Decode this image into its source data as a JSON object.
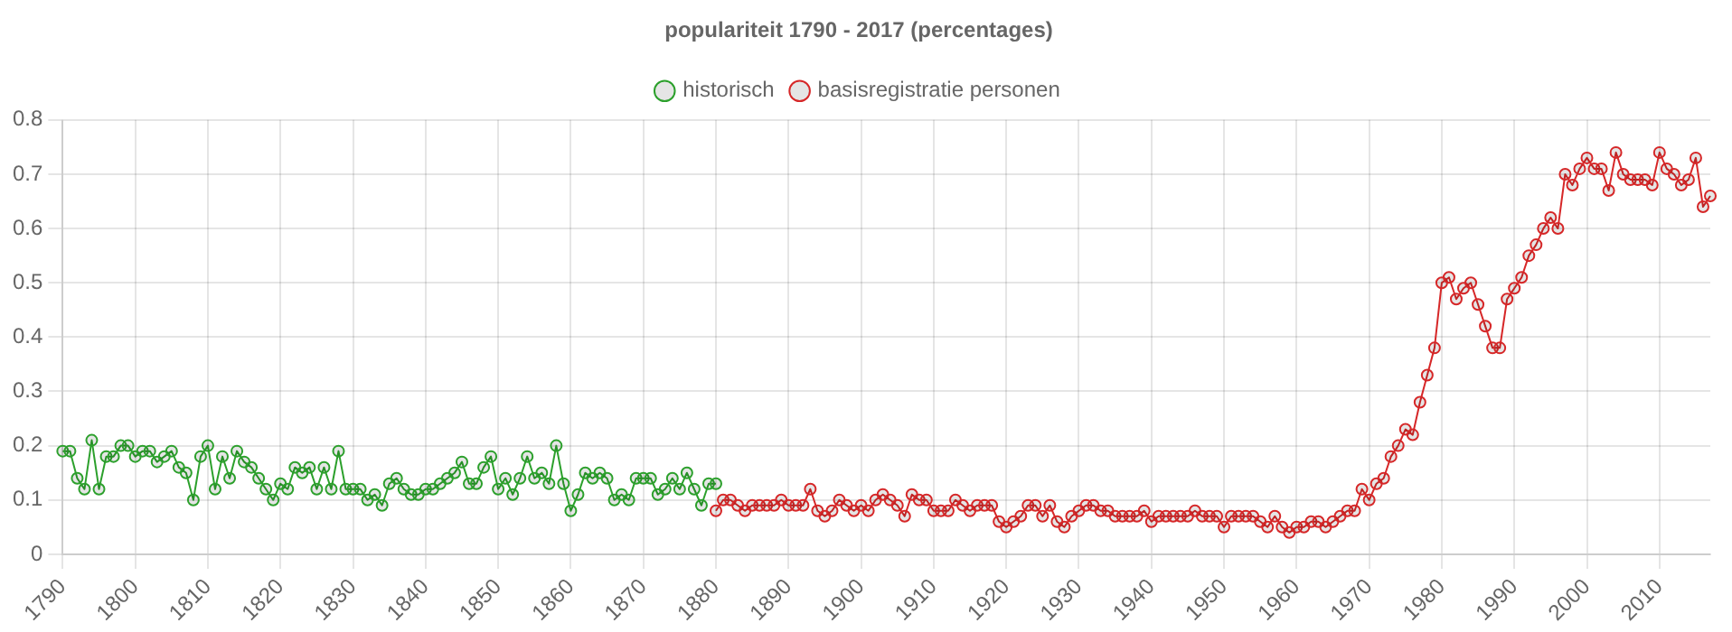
{
  "chart_data": {
    "type": "line",
    "title": "populariteit 1790 - 2017 (percentages)",
    "xlim": [
      1790,
      2017
    ],
    "xticks": [
      1790,
      1800,
      1810,
      1820,
      1830,
      1840,
      1850,
      1860,
      1870,
      1880,
      1890,
      1900,
      1910,
      1920,
      1930,
      1940,
      1950,
      1960,
      1970,
      1980,
      1990,
      2000,
      2010
    ],
    "ylim": [
      0,
      0.8
    ],
    "yticks": [
      0,
      0.1,
      0.2,
      0.3,
      0.4,
      0.5,
      0.6,
      0.7,
      0.8
    ],
    "grid": true,
    "legend": "top",
    "marker": "circle",
    "series": [
      {
        "name": "historisch",
        "color": "#2ca02c",
        "x": [
          1790,
          1791,
          1792,
          1793,
          1794,
          1795,
          1796,
          1797,
          1798,
          1799,
          1800,
          1801,
          1802,
          1803,
          1804,
          1805,
          1806,
          1807,
          1808,
          1809,
          1810,
          1811,
          1812,
          1813,
          1814,
          1815,
          1816,
          1817,
          1818,
          1819,
          1820,
          1821,
          1822,
          1823,
          1824,
          1825,
          1826,
          1827,
          1828,
          1829,
          1830,
          1831,
          1832,
          1833,
          1834,
          1835,
          1836,
          1837,
          1838,
          1839,
          1840,
          1841,
          1842,
          1843,
          1844,
          1845,
          1846,
          1847,
          1848,
          1849,
          1850,
          1851,
          1852,
          1853,
          1854,
          1855,
          1856,
          1857,
          1858,
          1859,
          1860,
          1861,
          1862,
          1863,
          1864,
          1865,
          1866,
          1867,
          1868,
          1869,
          1870,
          1871,
          1872,
          1873,
          1874,
          1875,
          1876,
          1877,
          1878,
          1879,
          1880
        ],
        "values": [
          0.19,
          0.19,
          0.14,
          0.12,
          0.21,
          0.12,
          0.18,
          0.18,
          0.2,
          0.2,
          0.18,
          0.19,
          0.19,
          0.17,
          0.18,
          0.19,
          0.16,
          0.15,
          0.1,
          0.18,
          0.2,
          0.12,
          0.18,
          0.14,
          0.19,
          0.17,
          0.16,
          0.14,
          0.12,
          0.1,
          0.13,
          0.12,
          0.16,
          0.15,
          0.16,
          0.12,
          0.16,
          0.12,
          0.19,
          0.12,
          0.12,
          0.12,
          0.1,
          0.11,
          0.09,
          0.13,
          0.14,
          0.12,
          0.11,
          0.11,
          0.12,
          0.12,
          0.13,
          0.14,
          0.15,
          0.17,
          0.13,
          0.13,
          0.16,
          0.18,
          0.12,
          0.14,
          0.11,
          0.14,
          0.18,
          0.14,
          0.15,
          0.13,
          0.2,
          0.13,
          0.08,
          0.11,
          0.15,
          0.14,
          0.15,
          0.14,
          0.1,
          0.11,
          0.1,
          0.14,
          0.14,
          0.14,
          0.11,
          0.12,
          0.14,
          0.12,
          0.15,
          0.12,
          0.09,
          0.13,
          0.13
        ]
      },
      {
        "name": "basisregistratie personen",
        "color": "#d62728",
        "x": [
          1880,
          1881,
          1882,
          1883,
          1884,
          1885,
          1886,
          1887,
          1888,
          1889,
          1890,
          1891,
          1892,
          1893,
          1894,
          1895,
          1896,
          1897,
          1898,
          1899,
          1900,
          1901,
          1902,
          1903,
          1904,
          1905,
          1906,
          1907,
          1908,
          1909,
          1910,
          1911,
          1912,
          1913,
          1914,
          1915,
          1916,
          1917,
          1918,
          1919,
          1920,
          1921,
          1922,
          1923,
          1924,
          1925,
          1926,
          1927,
          1928,
          1929,
          1930,
          1931,
          1932,
          1933,
          1934,
          1935,
          1936,
          1937,
          1938,
          1939,
          1940,
          1941,
          1942,
          1943,
          1944,
          1945,
          1946,
          1947,
          1948,
          1949,
          1950,
          1951,
          1952,
          1953,
          1954,
          1955,
          1956,
          1957,
          1958,
          1959,
          1960,
          1961,
          1962,
          1963,
          1964,
          1965,
          1966,
          1967,
          1968,
          1969,
          1970,
          1971,
          1972,
          1973,
          1974,
          1975,
          1976,
          1977,
          1978,
          1979,
          1980,
          1981,
          1982,
          1983,
          1984,
          1985,
          1986,
          1987,
          1988,
          1989,
          1990,
          1991,
          1992,
          1993,
          1994,
          1995,
          1996,
          1997,
          1998,
          1999,
          2000,
          2001,
          2002,
          2003,
          2004,
          2005,
          2006,
          2007,
          2008,
          2009,
          2010,
          2011,
          2012,
          2013,
          2014,
          2015,
          2016,
          2017
        ],
        "values": [
          0.08,
          0.1,
          0.1,
          0.09,
          0.08,
          0.09,
          0.09,
          0.09,
          0.09,
          0.1,
          0.09,
          0.09,
          0.09,
          0.12,
          0.08,
          0.07,
          0.08,
          0.1,
          0.09,
          0.08,
          0.09,
          0.08,
          0.1,
          0.11,
          0.1,
          0.09,
          0.07,
          0.11,
          0.1,
          0.1,
          0.08,
          0.08,
          0.08,
          0.1,
          0.09,
          0.08,
          0.09,
          0.09,
          0.09,
          0.06,
          0.05,
          0.06,
          0.07,
          0.09,
          0.09,
          0.07,
          0.09,
          0.06,
          0.05,
          0.07,
          0.08,
          0.09,
          0.09,
          0.08,
          0.08,
          0.07,
          0.07,
          0.07,
          0.07,
          0.08,
          0.06,
          0.07,
          0.07,
          0.07,
          0.07,
          0.07,
          0.08,
          0.07,
          0.07,
          0.07,
          0.05,
          0.07,
          0.07,
          0.07,
          0.07,
          0.06,
          0.05,
          0.07,
          0.05,
          0.04,
          0.05,
          0.05,
          0.06,
          0.06,
          0.05,
          0.06,
          0.07,
          0.08,
          0.08,
          0.12,
          0.1,
          0.13,
          0.14,
          0.18,
          0.2,
          0.23,
          0.22,
          0.28,
          0.33,
          0.38,
          0.5,
          0.51,
          0.47,
          0.49,
          0.5,
          0.46,
          0.42,
          0.38,
          0.38,
          0.47,
          0.49,
          0.51,
          0.55,
          0.57,
          0.6,
          0.62,
          0.6,
          0.7,
          0.68,
          0.71,
          0.73,
          0.71,
          0.71,
          0.67,
          0.74,
          0.7,
          0.69,
          0.69,
          0.69,
          0.68,
          0.74,
          0.71,
          0.7,
          0.68,
          0.69,
          0.73,
          0.64,
          0.66
        ]
      }
    ]
  }
}
